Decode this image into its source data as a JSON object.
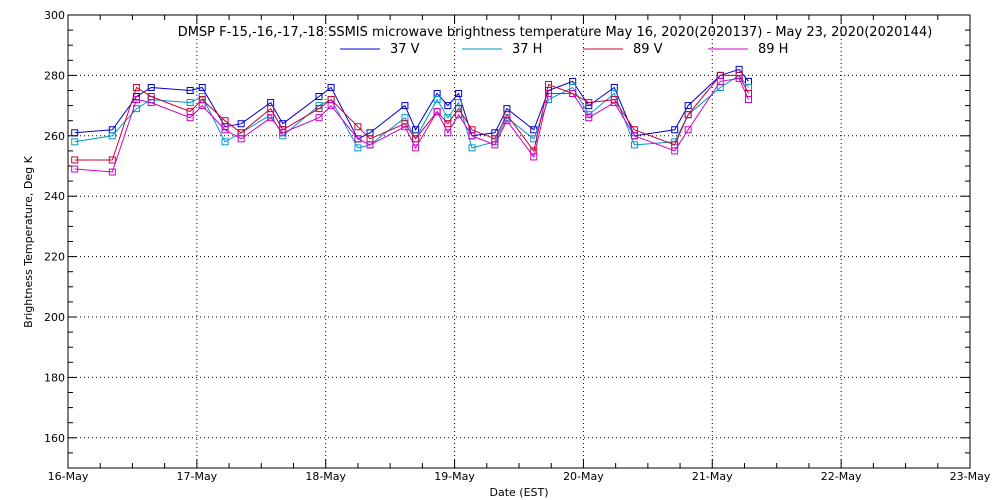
{
  "chart_data": {
    "type": "line",
    "title": "DMSP F-15,-16,-17,-18 SSMIS microwave brightness temperature May 16, 2020(2020137) - May 23, 2020(2020144)",
    "xlabel": "Date (EST)",
    "ylabel": "Brightness Temperature, Deg K",
    "xlim": [
      "2020-05-16T00:00",
      "2020-05-23T00:00"
    ],
    "ylim": [
      150,
      300
    ],
    "x_tick_labels": [
      "16-May",
      "17-May",
      "18-May",
      "19-May",
      "20-May",
      "21-May",
      "22-May",
      "23-May"
    ],
    "y_tick_labels": [
      "160",
      "180",
      "200",
      "220",
      "240",
      "260",
      "280",
      "300"
    ],
    "grid": true,
    "legend_position": "top-center",
    "x": [
      "2020-05-16T01:15",
      "2020-05-16T08:15",
      "2020-05-16T12:45",
      "2020-05-16T15:30",
      "2020-05-16T22:45",
      "2020-05-17T01:00",
      "2020-05-17T05:15",
      "2020-05-17T08:15",
      "2020-05-17T13:45",
      "2020-05-17T16:00",
      "2020-05-17T22:45",
      "2020-05-18T01:00",
      "2020-05-18T06:00",
      "2020-05-18T08:15",
      "2020-05-18T14:45",
      "2020-05-18T16:45",
      "2020-05-18T20:45",
      "2020-05-18T22:45",
      "2020-05-19T00:45",
      "2020-05-19T03:15",
      "2020-05-19T07:30",
      "2020-05-19T09:45",
      "2020-05-19T14:45",
      "2020-05-19T17:30",
      "2020-05-19T22:00",
      "2020-05-20T01:00",
      "2020-05-20T05:45",
      "2020-05-20T09:30",
      "2020-05-20T17:00",
      "2020-05-20T19:30",
      "2020-05-21T01:30",
      "2020-05-21T05:00",
      "2020-05-21T06:45"
    ],
    "series": [
      {
        "name": "37 V",
        "color": "#0000cc",
        "values": [
          261,
          262,
          273,
          276,
          275,
          276,
          263,
          264,
          271,
          264,
          273,
          276,
          259,
          261,
          270,
          262,
          274,
          270,
          274,
          260,
          261,
          269,
          262,
          275,
          278,
          270,
          276,
          260,
          262,
          270,
          280,
          282,
          278
        ]
      },
      {
        "name": "37 H",
        "color": "#0099cc",
        "values": [
          258,
          260,
          269,
          272,
          271,
          273,
          258,
          261,
          267,
          260,
          270,
          272,
          256,
          257,
          266,
          259,
          272,
          266,
          271,
          256,
          258,
          266,
          259,
          272,
          276,
          267,
          274,
          257,
          258,
          267,
          276,
          280,
          276
        ]
      },
      {
        "name": "89 V",
        "color": "#cc0033",
        "values": [
          252,
          252,
          276,
          273,
          268,
          272,
          265,
          261,
          269,
          262,
          269,
          272,
          263,
          259,
          264,
          259,
          268,
          264,
          269,
          262,
          259,
          267,
          255,
          277,
          274,
          271,
          272,
          262,
          257,
          267,
          280,
          280,
          274
        ]
      },
      {
        "name": "89 H",
        "color": "#cc00cc",
        "values": [
          249,
          248,
          272,
          271,
          266,
          270,
          262,
          259,
          266,
          261,
          266,
          270,
          259,
          257,
          263,
          256,
          268,
          261,
          267,
          260,
          257,
          265,
          253,
          274,
          274,
          266,
          271,
          260,
          255,
          262,
          278,
          279,
          272
        ]
      }
    ]
  }
}
